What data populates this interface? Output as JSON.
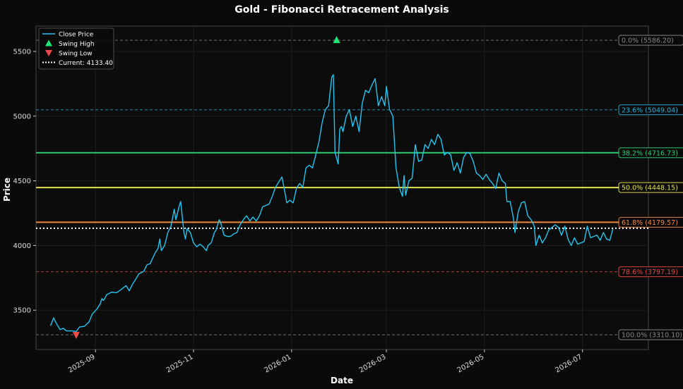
{
  "chart_data": {
    "type": "line",
    "title": "Gold - Fibonacci Retracement Analysis",
    "xlabel": "Date",
    "ylabel": "Price",
    "xlim": [
      "2025-07-26",
      "2026-08-11"
    ],
    "ylim": [
      3196,
      5696
    ],
    "x_ticks": [
      "2025-09-01",
      "2025-11-01",
      "2026-01-01",
      "2026-03-01",
      "2026-05-01",
      "2026-07-01"
    ],
    "x_tick_labels": [
      "2025-09",
      "2025-11",
      "2026-01",
      "2026-03",
      "2026-05",
      "2026-07"
    ],
    "y_ticks": [
      3500,
      4000,
      4500,
      5000,
      5500
    ],
    "grid": true,
    "legend_position": "top-left",
    "legend": [
      {
        "label": "Close Price",
        "kind": "line",
        "color": "#22c5f0"
      },
      {
        "label": "Swing High",
        "kind": "triangle-up",
        "color": "#1ee87a"
      },
      {
        "label": "Swing Low",
        "kind": "triangle-down",
        "color": "#f04848"
      },
      {
        "label": "Current: 4133.40",
        "kind": "dotted",
        "color": "#ffffff"
      }
    ],
    "fib_levels": [
      {
        "label": "0.0% (5586.20)",
        "price": 5586.2,
        "color": "#888888",
        "style": "dashed"
      },
      {
        "label": "23.6% (5049.04)",
        "price": 5049.04,
        "color": "#22b4dc",
        "style": "dashed"
      },
      {
        "label": "38.2% (4716.73)",
        "price": 4716.73,
        "color": "#2ecc71",
        "style": "solid"
      },
      {
        "label": "50.0% (4448.15)",
        "price": 4448.15,
        "color": "#e6e04a",
        "style": "solid"
      },
      {
        "label": "61.8% (4179.57)",
        "price": 4179.57,
        "color": "#f0883c",
        "style": "solid"
      },
      {
        "label": "78.6% (3797.19)",
        "price": 3797.19,
        "color": "#e04848",
        "style": "dashed"
      },
      {
        "label": "100.0% (3310.10)",
        "price": 3310.1,
        "color": "#888888",
        "style": "dashed"
      }
    ],
    "current_price": 4133.4,
    "swing_high": {
      "date": "2026-01-29",
      "price": 5586.2
    },
    "swing_low": {
      "date": "2025-08-20",
      "price": 3310.1
    },
    "series": [
      {
        "name": "Close Price",
        "color": "#22c5f0",
        "points": [
          [
            "2025-08-04",
            3380
          ],
          [
            "2025-08-06",
            3440
          ],
          [
            "2025-08-08",
            3390
          ],
          [
            "2025-08-10",
            3350
          ],
          [
            "2025-08-12",
            3360
          ],
          [
            "2025-08-14",
            3340
          ],
          [
            "2025-08-18",
            3340
          ],
          [
            "2025-08-20",
            3335
          ],
          [
            "2025-08-22",
            3370
          ],
          [
            "2025-08-25",
            3375
          ],
          [
            "2025-08-28",
            3410
          ],
          [
            "2025-08-30",
            3470
          ],
          [
            "2025-09-02",
            3510
          ],
          [
            "2025-09-04",
            3550
          ],
          [
            "2025-09-05",
            3590
          ],
          [
            "2025-09-06",
            3575
          ],
          [
            "2025-09-08",
            3620
          ],
          [
            "2025-09-11",
            3640
          ],
          [
            "2025-09-14",
            3635
          ],
          [
            "2025-09-17",
            3660
          ],
          [
            "2025-09-20",
            3690
          ],
          [
            "2025-09-22",
            3650
          ],
          [
            "2025-09-24",
            3700
          ],
          [
            "2025-09-26",
            3740
          ],
          [
            "2025-09-28",
            3780
          ],
          [
            "2025-10-01",
            3800
          ],
          [
            "2025-10-03",
            3850
          ],
          [
            "2025-10-05",
            3860
          ],
          [
            "2025-10-08",
            3940
          ],
          [
            "2025-10-10",
            3980
          ],
          [
            "2025-10-11",
            4050
          ],
          [
            "2025-10-12",
            3960
          ],
          [
            "2025-10-14",
            4000
          ],
          [
            "2025-10-16",
            4100
          ],
          [
            "2025-10-18",
            4150
          ],
          [
            "2025-10-20",
            4280
          ],
          [
            "2025-10-21",
            4200
          ],
          [
            "2025-10-23",
            4300
          ],
          [
            "2025-10-24",
            4340
          ],
          [
            "2025-10-26",
            4100
          ],
          [
            "2025-10-27",
            4050
          ],
          [
            "2025-10-28",
            4130
          ],
          [
            "2025-10-30",
            4100
          ],
          [
            "2025-11-01",
            4020
          ],
          [
            "2025-11-03",
            3990
          ],
          [
            "2025-11-05",
            4010
          ],
          [
            "2025-11-07",
            3990
          ],
          [
            "2025-11-09",
            3960
          ],
          [
            "2025-11-10",
            4000
          ],
          [
            "2025-11-12",
            4020
          ],
          [
            "2025-11-14",
            4100
          ],
          [
            "2025-11-15",
            4120
          ],
          [
            "2025-11-17",
            4200
          ],
          [
            "2025-11-18",
            4170
          ],
          [
            "2025-11-20",
            4080
          ],
          [
            "2025-11-22",
            4070
          ],
          [
            "2025-11-24",
            4070
          ],
          [
            "2025-11-26",
            4090
          ],
          [
            "2025-11-28",
            4100
          ],
          [
            "2025-11-30",
            4160
          ],
          [
            "2025-12-02",
            4200
          ],
          [
            "2025-12-04",
            4230
          ],
          [
            "2025-12-06",
            4190
          ],
          [
            "2025-12-08",
            4220
          ],
          [
            "2025-12-10",
            4190
          ],
          [
            "2025-12-12",
            4230
          ],
          [
            "2025-12-14",
            4300
          ],
          [
            "2025-12-16",
            4310
          ],
          [
            "2025-12-18",
            4320
          ],
          [
            "2025-12-20",
            4380
          ],
          [
            "2025-12-22",
            4450
          ],
          [
            "2025-12-24",
            4490
          ],
          [
            "2025-12-26",
            4530
          ],
          [
            "2025-12-28",
            4400
          ],
          [
            "2025-12-29",
            4330
          ],
          [
            "2025-12-31",
            4350
          ],
          [
            "2026-01-02",
            4330
          ],
          [
            "2026-01-04",
            4440
          ],
          [
            "2026-01-06",
            4480
          ],
          [
            "2026-01-08",
            4450
          ],
          [
            "2026-01-10",
            4600
          ],
          [
            "2026-01-12",
            4620
          ],
          [
            "2026-01-14",
            4600
          ],
          [
            "2026-01-16",
            4700
          ],
          [
            "2026-01-18",
            4800
          ],
          [
            "2026-01-20",
            4950
          ],
          [
            "2026-01-22",
            5050
          ],
          [
            "2026-01-24",
            5080
          ],
          [
            "2026-01-26",
            5300
          ],
          [
            "2026-01-27",
            5320
          ],
          [
            "2026-01-28",
            4720
          ],
          [
            "2026-01-30",
            4630
          ],
          [
            "2026-01-31",
            4900
          ],
          [
            "2026-02-01",
            4920
          ],
          [
            "2026-02-02",
            4880
          ],
          [
            "2026-02-04",
            5000
          ],
          [
            "2026-02-06",
            5050
          ],
          [
            "2026-02-08",
            4920
          ],
          [
            "2026-02-10",
            5000
          ],
          [
            "2026-02-12",
            4880
          ],
          [
            "2026-02-14",
            5100
          ],
          [
            "2026-02-16",
            5200
          ],
          [
            "2026-02-18",
            5180
          ],
          [
            "2026-02-20",
            5240
          ],
          [
            "2026-02-22",
            5290
          ],
          [
            "2026-02-24",
            5080
          ],
          [
            "2026-02-26",
            5150
          ],
          [
            "2026-02-28",
            5080
          ],
          [
            "2026-03-01",
            5230
          ],
          [
            "2026-03-03",
            5050
          ],
          [
            "2026-03-05",
            5000
          ],
          [
            "2026-03-07",
            4600
          ],
          [
            "2026-03-09",
            4450
          ],
          [
            "2026-03-11",
            4380
          ],
          [
            "2026-03-12",
            4540
          ],
          [
            "2026-03-13",
            4390
          ],
          [
            "2026-03-15",
            4500
          ],
          [
            "2026-03-17",
            4520
          ],
          [
            "2026-03-19",
            4780
          ],
          [
            "2026-03-21",
            4650
          ],
          [
            "2026-03-23",
            4660
          ],
          [
            "2026-03-25",
            4780
          ],
          [
            "2026-03-27",
            4750
          ],
          [
            "2026-03-29",
            4820
          ],
          [
            "2026-03-31",
            4780
          ],
          [
            "2026-04-02",
            4860
          ],
          [
            "2026-04-04",
            4820
          ],
          [
            "2026-04-06",
            4700
          ],
          [
            "2026-04-08",
            4720
          ],
          [
            "2026-04-10",
            4700
          ],
          [
            "2026-04-12",
            4580
          ],
          [
            "2026-04-14",
            4640
          ],
          [
            "2026-04-16",
            4560
          ],
          [
            "2026-04-18",
            4680
          ],
          [
            "2026-04-20",
            4720
          ],
          [
            "2026-04-22",
            4710
          ],
          [
            "2026-04-24",
            4650
          ],
          [
            "2026-04-26",
            4560
          ],
          [
            "2026-04-28",
            4540
          ],
          [
            "2026-04-30",
            4510
          ],
          [
            "2026-05-02",
            4550
          ],
          [
            "2026-05-04",
            4510
          ],
          [
            "2026-05-06",
            4480
          ],
          [
            "2026-05-08",
            4440
          ],
          [
            "2026-05-10",
            4560
          ],
          [
            "2026-05-12",
            4500
          ],
          [
            "2026-05-14",
            4480
          ],
          [
            "2026-05-15",
            4340
          ],
          [
            "2026-05-17",
            4340
          ],
          [
            "2026-05-19",
            4210
          ],
          [
            "2026-05-20",
            4100
          ],
          [
            "2026-05-22",
            4260
          ],
          [
            "2026-05-24",
            4330
          ],
          [
            "2026-05-26",
            4340
          ],
          [
            "2026-05-28",
            4230
          ],
          [
            "2026-05-30",
            4200
          ],
          [
            "2026-06-01",
            4150
          ],
          [
            "2026-06-02",
            4000
          ],
          [
            "2026-06-04",
            4080
          ],
          [
            "2026-06-06",
            4020
          ],
          [
            "2026-06-08",
            4060
          ],
          [
            "2026-06-10",
            4120
          ],
          [
            "2026-06-12",
            4140
          ],
          [
            "2026-06-14",
            4160
          ],
          [
            "2026-06-16",
            4140
          ],
          [
            "2026-06-18",
            4080
          ],
          [
            "2026-06-20",
            4150
          ],
          [
            "2026-06-22",
            4050
          ],
          [
            "2026-06-24",
            4000
          ],
          [
            "2026-06-26",
            4060
          ],
          [
            "2026-06-28",
            4010
          ],
          [
            "2026-06-30",
            4020
          ],
          [
            "2026-07-02",
            4030
          ],
          [
            "2026-07-04",
            4150
          ],
          [
            "2026-07-06",
            4060
          ],
          [
            "2026-07-08",
            4070
          ],
          [
            "2026-07-10",
            4080
          ],
          [
            "2026-07-12",
            4040
          ],
          [
            "2026-07-14",
            4100
          ],
          [
            "2026-07-16",
            4050
          ],
          [
            "2026-07-18",
            4040
          ],
          [
            "2026-07-20",
            4133
          ]
        ]
      }
    ]
  }
}
